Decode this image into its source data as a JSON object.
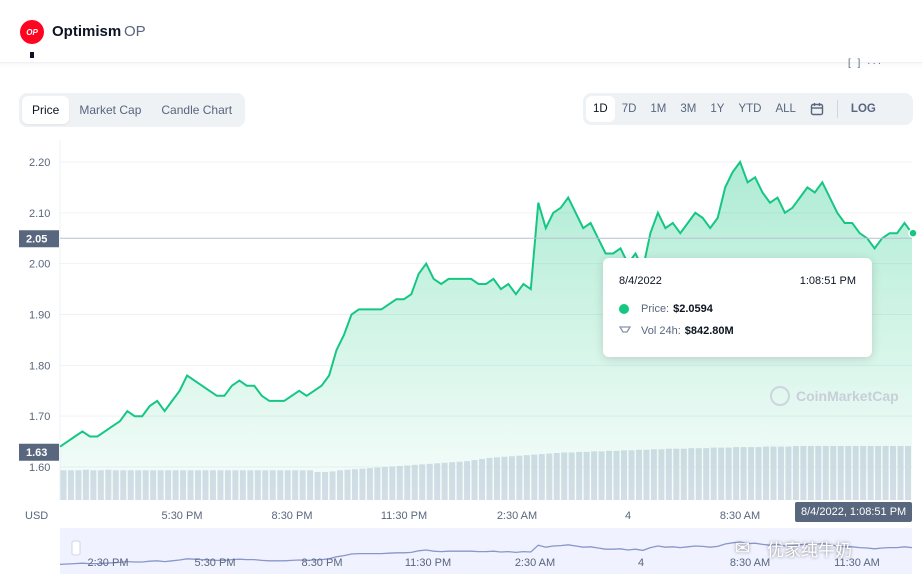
{
  "header": {
    "logo_text": "OP",
    "name": "Optimism",
    "symbol": "OP"
  },
  "tabs": [
    "Price",
    "Market Cap",
    "Candle Chart"
  ],
  "ranges": [
    "1D",
    "7D",
    "1M",
    "3M",
    "1Y",
    "YTD",
    "ALL"
  ],
  "log_label": "LOG",
  "icons": {
    "calendar": "calendar-icon",
    "fullscreen": "fullscreen-icon",
    "more": "more-icon",
    "volume": "volume-icon"
  },
  "colors": {
    "line": "#16c784",
    "axis_badge": "#58667e",
    "volume_bar": "#cfd6e4"
  },
  "chart_data": {
    "type": "area",
    "y_unit_label": "USD",
    "y_ticks": [
      "2.20",
      "2.10",
      "2.00",
      "1.90",
      "1.80",
      "1.70",
      "1.60"
    ],
    "ylim": [
      1.59,
      2.22
    ],
    "x_ticks": [
      "5:30 PM",
      "8:30 PM",
      "11:30 PM",
      "2:30 AM",
      "4",
      "8:30 AM"
    ],
    "current_price_badge": "2.05",
    "min_price_badge": "1.63",
    "series": [
      {
        "values": [
          1.64,
          1.65,
          1.66,
          1.67,
          1.66,
          1.66,
          1.67,
          1.68,
          1.69,
          1.71,
          1.7,
          1.7,
          1.72,
          1.73,
          1.71,
          1.73,
          1.75,
          1.78,
          1.77,
          1.76,
          1.75,
          1.74,
          1.74,
          1.76,
          1.77,
          1.76,
          1.76,
          1.74,
          1.73,
          1.73,
          1.73,
          1.74,
          1.75,
          1.74,
          1.75,
          1.76,
          1.78,
          1.83,
          1.86,
          1.9,
          1.91,
          1.91,
          1.91,
          1.91,
          1.92,
          1.93,
          1.93,
          1.94,
          1.98,
          2.0,
          1.97,
          1.96,
          1.97,
          1.97,
          1.97,
          1.97,
          1.96,
          1.96,
          1.97,
          1.95,
          1.96,
          1.94,
          1.96,
          1.95,
          2.12,
          2.07,
          2.1,
          2.11,
          2.13,
          2.1,
          2.07,
          2.08,
          2.05,
          2.02,
          2.02,
          2.03,
          2.0,
          2.02,
          1.99,
          2.06,
          2.1,
          2.07,
          2.08,
          2.06,
          2.08,
          2.1,
          2.09,
          2.07,
          2.09,
          2.15,
          2.18,
          2.2,
          2.16,
          2.17,
          2.14,
          2.12,
          2.13,
          2.1,
          2.11,
          2.13,
          2.15,
          2.14,
          2.16,
          2.13,
          2.1,
          2.08,
          2.08,
          2.06,
          2.05,
          2.03,
          2.05,
          2.06,
          2.06,
          2.08,
          2.06
        ]
      }
    ],
    "volume": [
      0.55,
      0.55,
      0.55,
      0.56,
      0.55,
      0.55,
      0.56,
      0.55,
      0.55,
      0.55,
      0.55,
      0.55,
      0.55,
      0.55,
      0.55,
      0.55,
      0.55,
      0.55,
      0.55,
      0.55,
      0.55,
      0.55,
      0.55,
      0.55,
      0.55,
      0.55,
      0.55,
      0.55,
      0.55,
      0.55,
      0.55,
      0.55,
      0.55,
      0.55,
      0.52,
      0.52,
      0.53,
      0.55,
      0.56,
      0.57,
      0.58,
      0.59,
      0.6,
      0.61,
      0.62,
      0.63,
      0.64,
      0.65,
      0.66,
      0.67,
      0.68,
      0.69,
      0.7,
      0.71,
      0.72,
      0.74,
      0.76,
      0.78,
      0.79,
      0.8,
      0.81,
      0.82,
      0.83,
      0.84,
      0.85,
      0.86,
      0.87,
      0.88,
      0.88,
      0.89,
      0.89,
      0.9,
      0.9,
      0.91,
      0.91,
      0.92,
      0.92,
      0.93,
      0.93,
      0.94,
      0.94,
      0.95,
      0.95,
      0.95,
      0.96,
      0.96,
      0.96,
      0.97,
      0.97,
      0.97,
      0.98,
      0.98,
      0.98,
      0.98,
      0.99,
      0.99,
      0.99,
      0.99,
      1.0,
      1.0,
      1.0,
      1.0,
      1.0,
      1.0,
      1.0,
      1.0,
      1.0,
      1.0,
      1.0,
      1.0,
      1.0,
      1.0,
      1.0,
      1.0
    ]
  },
  "tooltip": {
    "date": "8/4/2022",
    "time": "1:08:51 PM",
    "price_label": "Price:",
    "price_value": "$2.0594",
    "vol_label": "Vol 24h:",
    "vol_value": "$842.80M"
  },
  "watermark": "CoinMarketCap",
  "cursor_time": "8/4/2022, 1:08:51 PM",
  "navigator": {
    "x_ticks": [
      "2:30 PM",
      "5:30 PM",
      "8:30 PM",
      "11:30 PM",
      "2:30 AM",
      "4",
      "8:30 AM",
      "11:30 AM"
    ]
  },
  "wechat_text": "优家纯牛奶"
}
